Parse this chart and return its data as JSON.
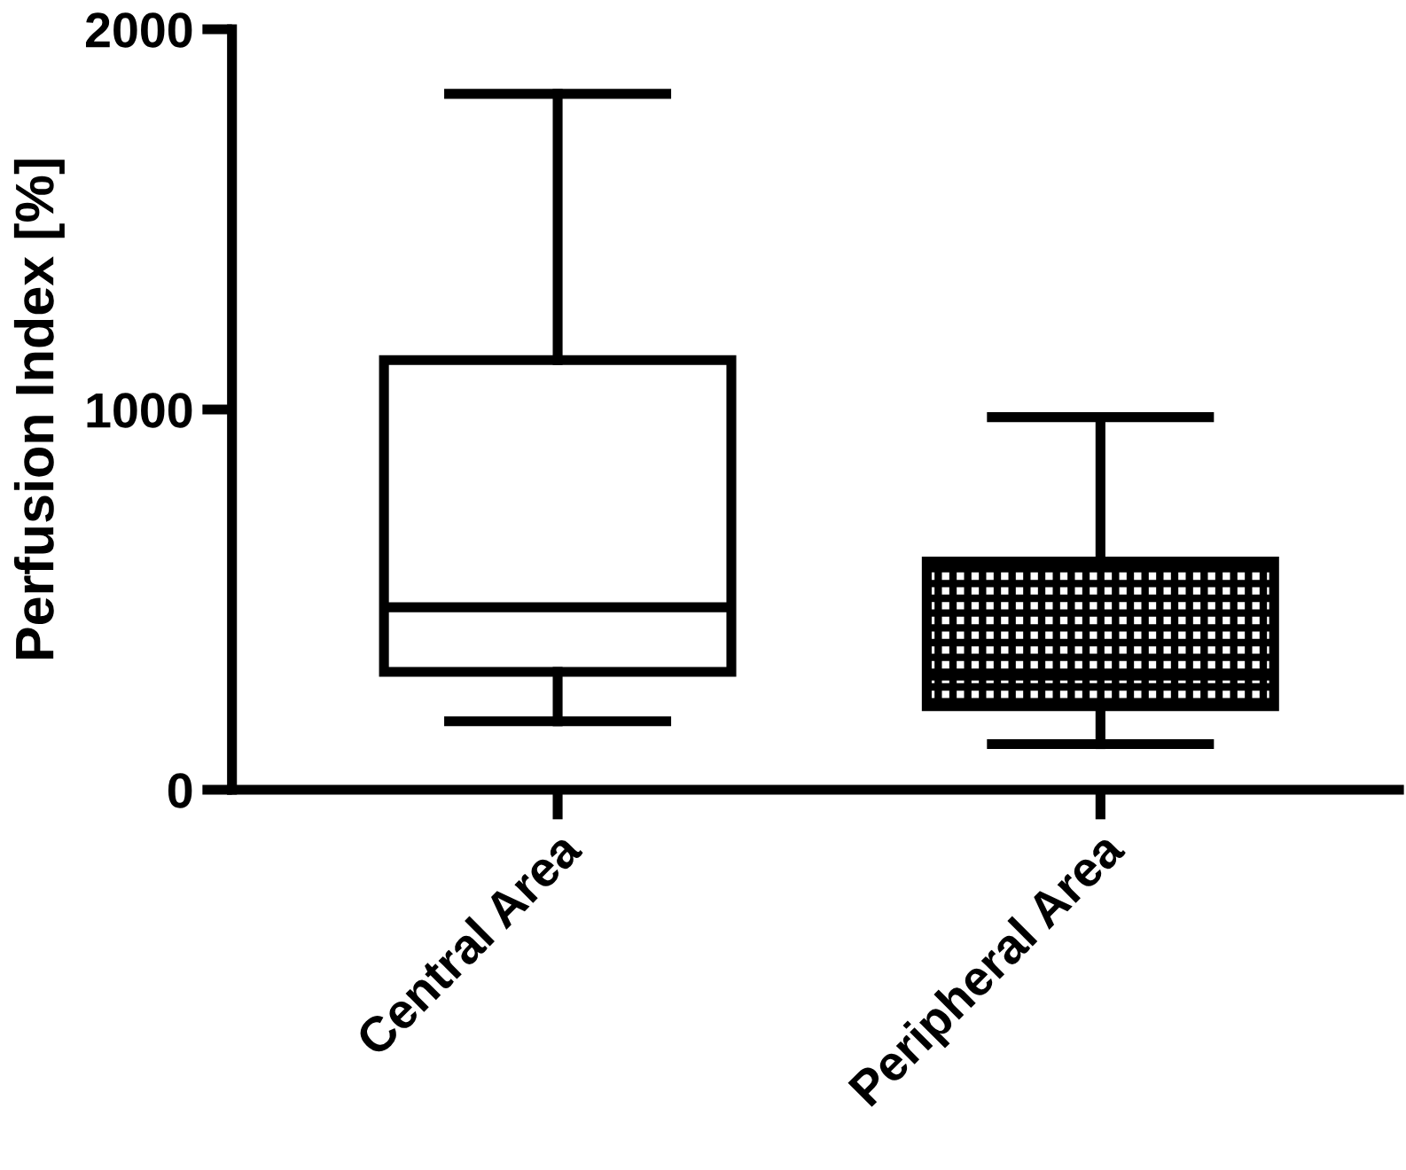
{
  "chart_data": {
    "type": "box",
    "ylabel": "Perfusion Index [%]",
    "categories": [
      "Central Area",
      "Peripheral Area"
    ],
    "boxes": [
      {
        "low": 180,
        "q1": 310,
        "median": 480,
        "q3": 1130,
        "high": 1830
      },
      {
        "low": 120,
        "q1": 220,
        "median": 300,
        "q3": 600,
        "high": 980
      }
    ],
    "ylim": [
      0,
      2000
    ],
    "yticks": [
      0,
      1000,
      2000
    ],
    "grid": false,
    "legend": false
  }
}
